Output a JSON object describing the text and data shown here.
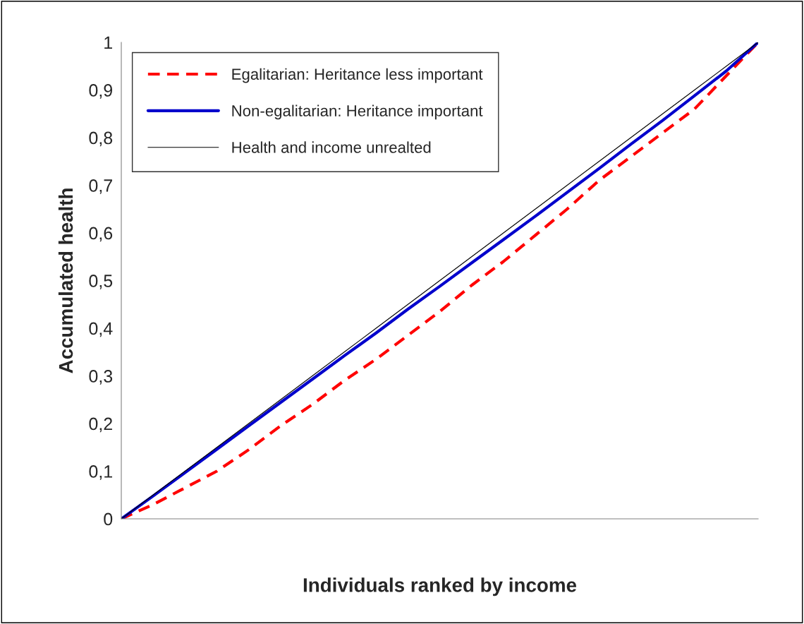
{
  "chart_data": {
    "type": "line",
    "xlabel": "Individuals ranked by income",
    "ylabel": "Accumulated health",
    "categories": [
      null,
      null,
      null,
      null,
      null,
      null,
      null,
      null,
      null,
      null,
      null,
      null,
      null,
      null,
      null,
      null,
      null,
      null,
      null,
      null,
      null
    ],
    "series": [
      {
        "name": "Egalitarian: Heritance less important",
        "color": "#ff0000",
        "line_style": "dashed",
        "values": [
          0,
          0.03,
          0.065,
          0.1,
          0.145,
          0.195,
          0.24,
          0.29,
          0.335,
          0.385,
          0.435,
          0.49,
          0.54,
          0.595,
          0.65,
          0.71,
          0.76,
          0.81,
          0.86,
          0.93,
          1
        ]
      },
      {
        "name": "Non-egalitarian: Heritance important",
        "color": "#0000cc",
        "line_style": "solid",
        "values": [
          0,
          0.048,
          0.097,
          0.146,
          0.195,
          0.244,
          0.293,
          0.342,
          0.39,
          0.44,
          0.488,
          0.537,
          0.586,
          0.635,
          0.685,
          0.735,
          0.786,
          0.836,
          0.888,
          0.94,
          1
        ]
      },
      {
        "name": "Health and income unrealted",
        "color": "#000000",
        "line_style": "solid",
        "values": [
          0,
          0.05,
          0.1,
          0.15,
          0.2,
          0.25,
          0.3,
          0.35,
          0.4,
          0.45,
          0.5,
          0.55,
          0.6,
          0.65,
          0.7,
          0.75,
          0.8,
          0.85,
          0.9,
          0.95,
          1
        ]
      }
    ],
    "ylim": [
      0,
      1
    ],
    "yticks": [
      0,
      {
        "value": 0.1,
        "label": "0,1"
      },
      {
        "value": 0.2,
        "label": "0,2"
      },
      {
        "value": 0.3,
        "label": "0,3"
      },
      {
        "value": 0.4,
        "label": "0,4"
      },
      {
        "value": 0.5,
        "label": "0,5"
      },
      {
        "value": 0.6,
        "label": "0,6"
      },
      {
        "value": 0.7,
        "label": "0,7"
      },
      {
        "value": 0.8,
        "label": "0,8"
      },
      {
        "value": 0.9,
        "label": "0,9"
      },
      1
    ],
    "tick_labels": "y",
    "grid": false,
    "legend": "top left",
    "marker": "none"
  }
}
